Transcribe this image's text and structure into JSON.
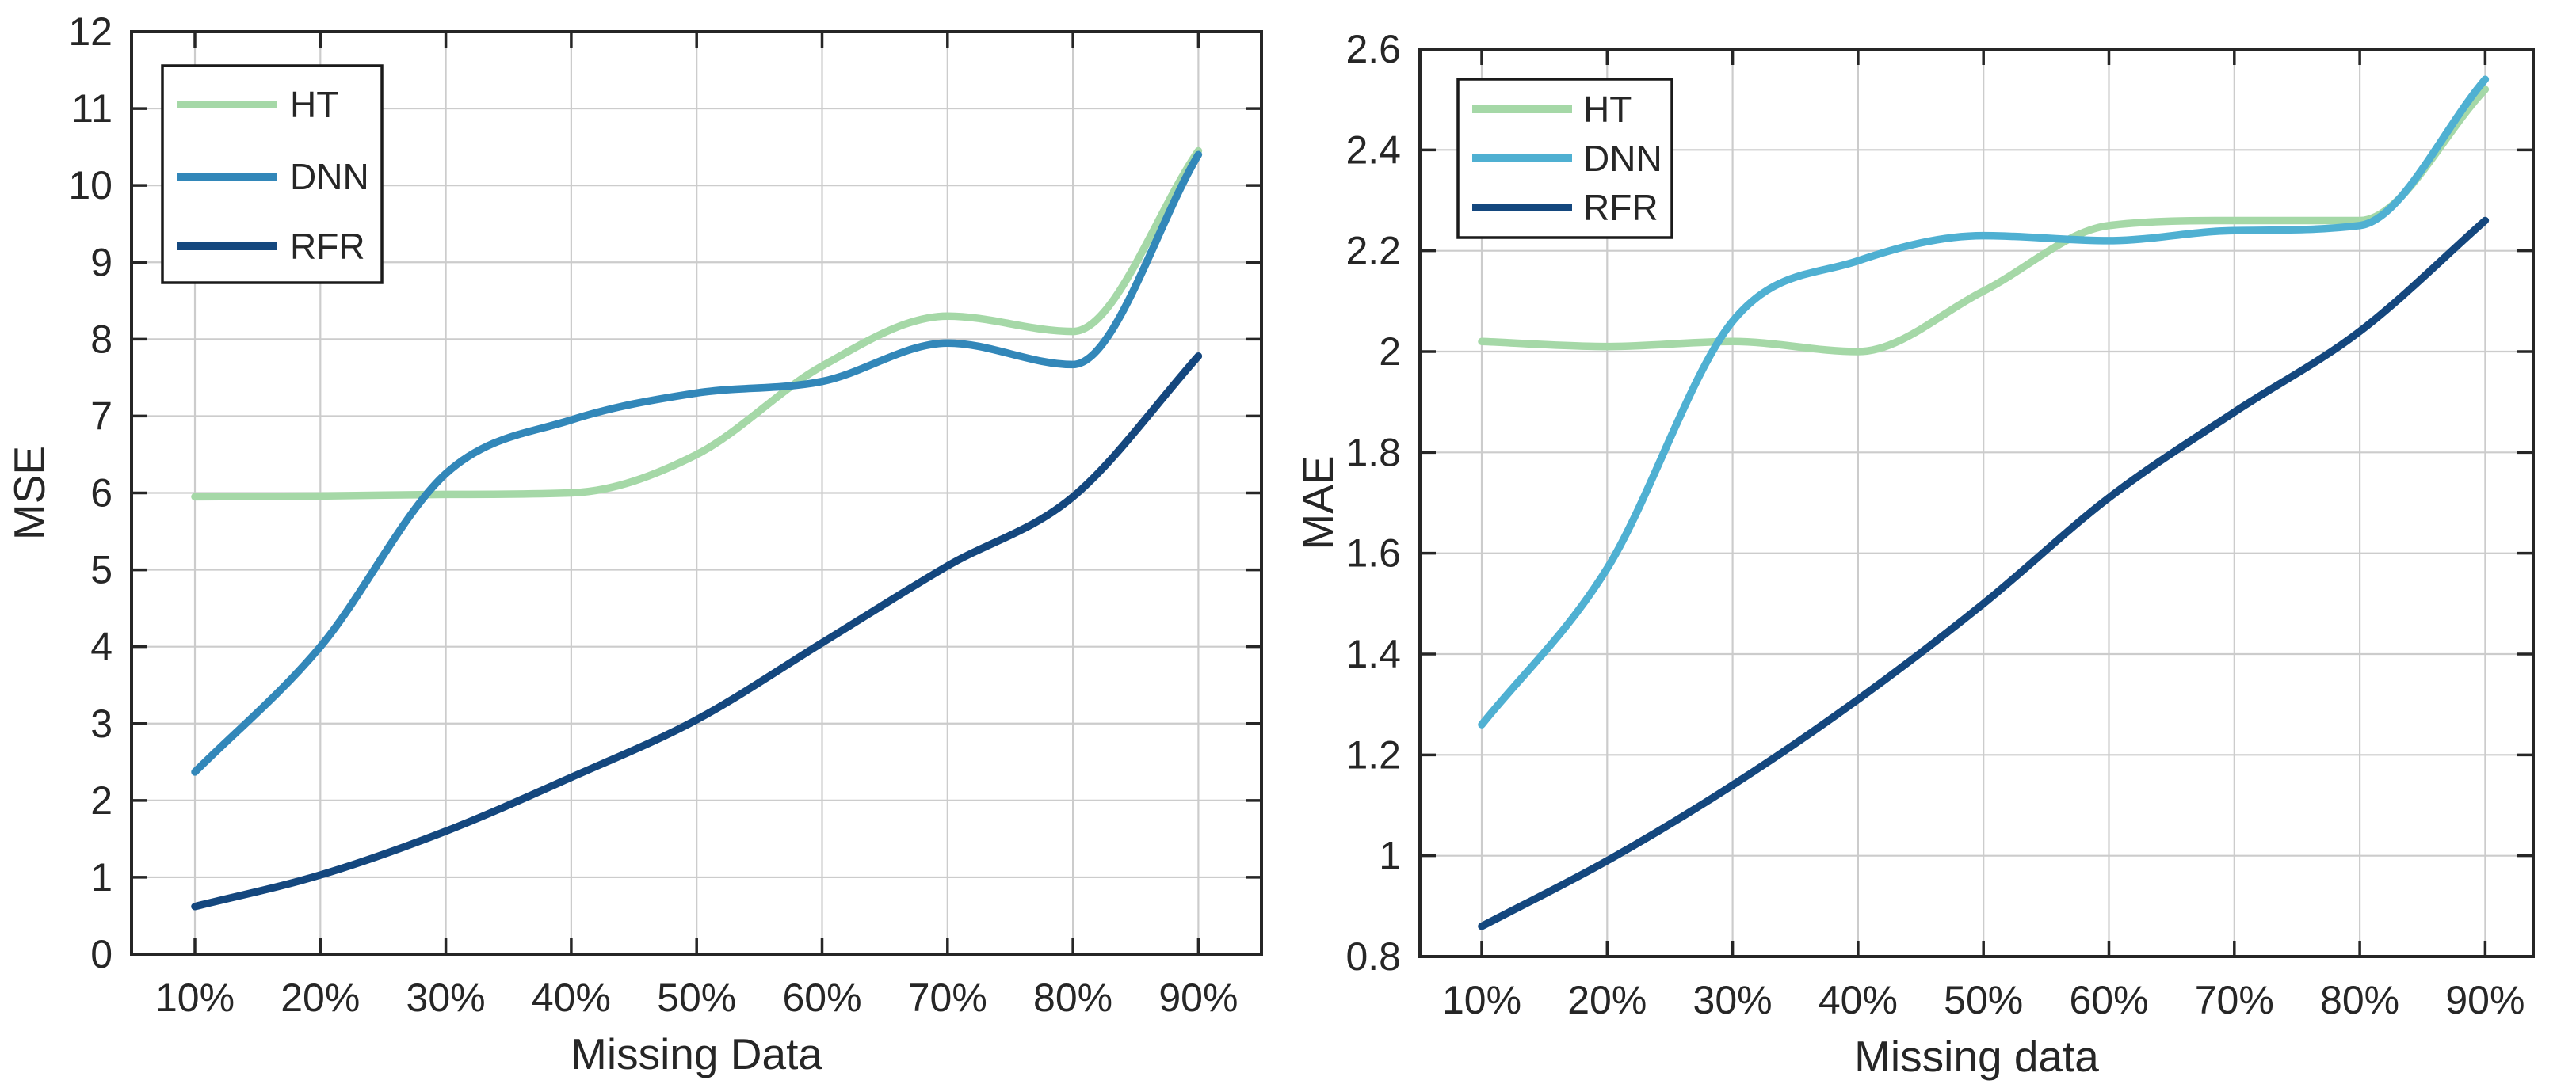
{
  "figure": {
    "background": "#ffffff"
  },
  "colors": {
    "grid": "#cccccc",
    "axis": "#262626",
    "text": "#262626",
    "legend_border": "#1a1a1a",
    "legend_background": "#ffffff"
  },
  "chart_data": [
    {
      "type": "line",
      "title": "",
      "xlabel": "Missing Data",
      "ylabel": "MSE",
      "x_tick_labels": [
        "10%",
        "20%",
        "30%",
        "40%",
        "50%",
        "60%",
        "70%",
        "80%",
        "90%"
      ],
      "x_values_percent": [
        10,
        20,
        30,
        40,
        50,
        60,
        70,
        80,
        90
      ],
      "ylim": [
        0,
        12
      ],
      "y_ticks": [
        0,
        1,
        2,
        3,
        4,
        5,
        6,
        7,
        8,
        9,
        10,
        11,
        12
      ],
      "y_tick_labels": [
        "0",
        "1",
        "2",
        "3",
        "4",
        "5",
        "6",
        "7",
        "8",
        "9",
        "10",
        "11",
        "12"
      ],
      "grid": true,
      "legend_position": "upper-left",
      "series": [
        {
          "name": "HT",
          "color": "#a5d8a7",
          "values": [
            5.95,
            5.96,
            5.98,
            6.0,
            6.5,
            7.65,
            8.3,
            8.1,
            10.45
          ]
        },
        {
          "name": "DNN",
          "color": "#3287b9",
          "values": [
            2.37,
            4.0,
            6.25,
            6.95,
            7.3,
            7.45,
            7.95,
            7.67,
            10.4
          ]
        },
        {
          "name": "RFR",
          "color": "#14477e",
          "values": [
            0.62,
            1.03,
            1.6,
            2.3,
            3.05,
            4.05,
            5.05,
            5.95,
            7.78
          ]
        }
      ]
    },
    {
      "type": "line",
      "title": "",
      "xlabel": "Missing data",
      "ylabel": "MAE",
      "x_tick_labels": [
        "10%",
        "20%",
        "30%",
        "40%",
        "50%",
        "60%",
        "70%",
        "80%",
        "90%"
      ],
      "x_values_percent": [
        10,
        20,
        30,
        40,
        50,
        60,
        70,
        80,
        90
      ],
      "ylim": [
        0.8,
        2.6
      ],
      "y_ticks": [
        0.8,
        1.0,
        1.2,
        1.4,
        1.6,
        1.8,
        2.0,
        2.2,
        2.4,
        2.6
      ],
      "y_tick_labels": [
        "0.8",
        "1",
        "1.2",
        "1.4",
        "1.6",
        "1.8",
        "2",
        "2.2",
        "2.4",
        "2.6"
      ],
      "grid": true,
      "legend_position": "upper-left",
      "series": [
        {
          "name": "HT",
          "color": "#a5d8a7",
          "values": [
            2.02,
            2.01,
            2.02,
            2.0,
            2.12,
            2.25,
            2.26,
            2.26,
            2.52
          ]
        },
        {
          "name": "DNN",
          "color": "#4fb0d2",
          "values": [
            1.26,
            1.57,
            2.06,
            2.18,
            2.23,
            2.22,
            2.24,
            2.25,
            2.54
          ]
        },
        {
          "name": "RFR",
          "color": "#14477e",
          "values": [
            0.86,
            0.99,
            1.14,
            1.31,
            1.5,
            1.71,
            1.88,
            2.04,
            2.26
          ]
        }
      ]
    }
  ]
}
